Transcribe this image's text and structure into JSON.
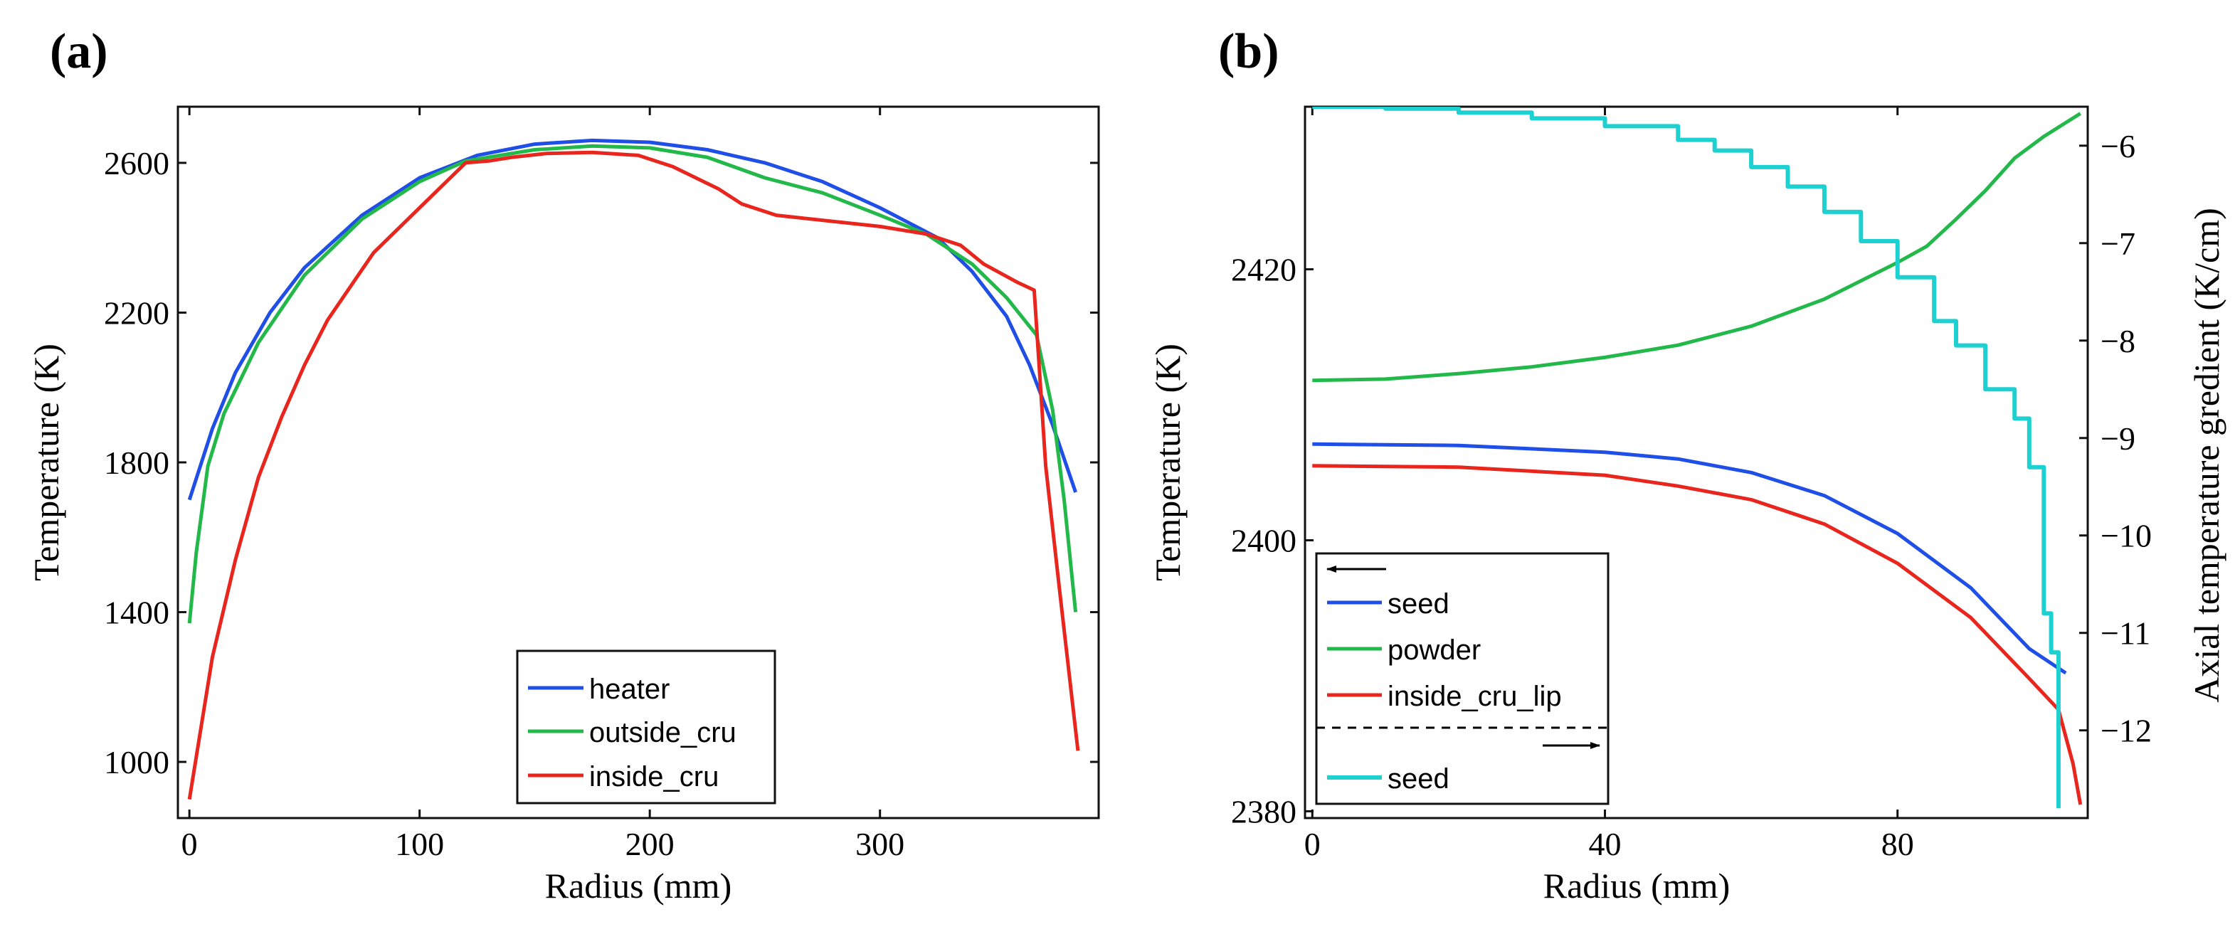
{
  "chart_data": [
    {
      "panel_label": "(a)",
      "type": "line",
      "xlabel": "Radius (mm)",
      "ylabel": "Temperature (K)",
      "xlim": [
        -5,
        395
      ],
      "ylim": [
        850,
        2750
      ],
      "xticks": [
        0,
        100,
        200,
        300
      ],
      "yticks": [
        1000,
        1400,
        1800,
        2200,
        2600
      ],
      "legend_position": "bottom-center",
      "series": [
        {
          "name": "heater",
          "color": "#1f4fe6",
          "axis": "left",
          "points": [
            [
              0,
              1700
            ],
            [
              10,
              1890
            ],
            [
              20,
              2040
            ],
            [
              35,
              2200
            ],
            [
              50,
              2320
            ],
            [
              75,
              2460
            ],
            [
              100,
              2560
            ],
            [
              125,
              2620
            ],
            [
              150,
              2650
            ],
            [
              175,
              2660
            ],
            [
              200,
              2655
            ],
            [
              225,
              2635
            ],
            [
              250,
              2600
            ],
            [
              275,
              2550
            ],
            [
              300,
              2480
            ],
            [
              325,
              2400
            ],
            [
              340,
              2310
            ],
            [
              355,
              2190
            ],
            [
              365,
              2060
            ],
            [
              375,
              1900
            ],
            [
              385,
              1720
            ]
          ]
        },
        {
          "name": "outside_cru",
          "color": "#22b84a",
          "axis": "left",
          "points": [
            [
              0,
              1370
            ],
            [
              3,
              1560
            ],
            [
              8,
              1790
            ],
            [
              15,
              1930
            ],
            [
              30,
              2120
            ],
            [
              50,
              2300
            ],
            [
              75,
              2450
            ],
            [
              100,
              2550
            ],
            [
              120,
              2605
            ],
            [
              150,
              2635
            ],
            [
              175,
              2645
            ],
            [
              200,
              2640
            ],
            [
              225,
              2615
            ],
            [
              250,
              2560
            ],
            [
              275,
              2520
            ],
            [
              300,
              2460
            ],
            [
              320,
              2410
            ],
            [
              340,
              2330
            ],
            [
              355,
              2240
            ],
            [
              368,
              2140
            ],
            [
              375,
              1940
            ],
            [
              380,
              1700
            ],
            [
              385,
              1400
            ]
          ]
        },
        {
          "name": "inside_cru",
          "color": "#e8261e",
          "axis": "left",
          "points": [
            [
              0,
              900
            ],
            [
              10,
              1280
            ],
            [
              20,
              1540
            ],
            [
              30,
              1760
            ],
            [
              40,
              1920
            ],
            [
              50,
              2060
            ],
            [
              60,
              2180
            ],
            [
              80,
              2360
            ],
            [
              100,
              2480
            ],
            [
              120,
              2600
            ],
            [
              130,
              2605
            ],
            [
              140,
              2615
            ],
            [
              155,
              2625
            ],
            [
              175,
              2628
            ],
            [
              195,
              2620
            ],
            [
              210,
              2590
            ],
            [
              220,
              2560
            ],
            [
              230,
              2530
            ],
            [
              240,
              2490
            ],
            [
              255,
              2460
            ],
            [
              300,
              2430
            ],
            [
              320,
              2410
            ],
            [
              335,
              2380
            ],
            [
              345,
              2330
            ],
            [
              360,
              2280
            ],
            [
              367,
              2260
            ],
            [
              372,
              1790
            ],
            [
              378,
              1460
            ],
            [
              386,
              1030
            ]
          ]
        }
      ]
    },
    {
      "panel_label": "(b)",
      "type": "line",
      "xlabel": "Radius (mm)",
      "ylabel": "Temperature (K)",
      "ylabel_right": "Axial temperature gredient (K/cm)",
      "xlim": [
        -1,
        106
      ],
      "ylim": [
        2379.5,
        2432
      ],
      "ylim_right": [
        -12.9,
        -5.6
      ],
      "xticks": [
        0,
        40,
        80
      ],
      "yticks": [
        2380,
        2400,
        2420
      ],
      "yticks_right": [
        -6,
        -7,
        -8,
        -9,
        -10,
        -11,
        -12
      ],
      "legend_position": "bottom-left",
      "legend_left_arrow": "←",
      "legend_right_arrow": "→",
      "series": [
        {
          "name": "seed",
          "color": "#1f4fe6",
          "axis": "left",
          "points": [
            [
              0,
              2407.1
            ],
            [
              20,
              2407.0
            ],
            [
              40,
              2406.5
            ],
            [
              50,
              2406.0
            ],
            [
              60,
              2405.0
            ],
            [
              70,
              2403.3
            ],
            [
              80,
              2400.5
            ],
            [
              90,
              2396.5
            ],
            [
              98,
              2392.0
            ],
            [
              103,
              2390.2
            ]
          ]
        },
        {
          "name": "powder",
          "color": "#22b84a",
          "axis": "left",
          "points": [
            [
              0,
              2411.8
            ],
            [
              10,
              2411.9
            ],
            [
              20,
              2412.3
            ],
            [
              30,
              2412.8
            ],
            [
              40,
              2413.5
            ],
            [
              50,
              2414.4
            ],
            [
              60,
              2415.8
            ],
            [
              70,
              2417.8
            ],
            [
              80,
              2420.5
            ],
            [
              84,
              2421.7
            ],
            [
              88,
              2423.7
            ],
            [
              92,
              2425.8
            ],
            [
              96,
              2428.2
            ],
            [
              100,
              2429.8
            ],
            [
              105,
              2431.5
            ]
          ]
        },
        {
          "name": "inside_cru_lip",
          "color": "#e8261e",
          "axis": "left",
          "points": [
            [
              0,
              2405.5
            ],
            [
              20,
              2405.4
            ],
            [
              40,
              2404.8
            ],
            [
              50,
              2404.0
            ],
            [
              60,
              2403.0
            ],
            [
              70,
              2401.2
            ],
            [
              80,
              2398.3
            ],
            [
              90,
              2394.3
            ],
            [
              98,
              2389.8
            ],
            [
              102,
              2387.5
            ],
            [
              104,
              2383.5
            ],
            [
              105,
              2380.5
            ]
          ]
        },
        {
          "name": "seed",
          "color": "#1fd0d0",
          "axis": "right",
          "style": "staircase",
          "points": [
            [
              0,
              -5.6
            ],
            [
              10,
              -5.62
            ],
            [
              20,
              -5.66
            ],
            [
              30,
              -5.72
            ],
            [
              40,
              -5.8
            ],
            [
              50,
              -5.94
            ],
            [
              55,
              -6.05
            ],
            [
              60,
              -6.22
            ],
            [
              65,
              -6.42
            ],
            [
              70,
              -6.68
            ],
            [
              75,
              -6.98
            ],
            [
              80,
              -7.35
            ],
            [
              85,
              -7.8
            ],
            [
              88,
              -8.05
            ],
            [
              92,
              -8.5
            ],
            [
              96,
              -8.8
            ],
            [
              98,
              -9.3
            ],
            [
              100,
              -10.8
            ],
            [
              101,
              -11.2
            ],
            [
              102,
              -12.8
            ]
          ]
        }
      ]
    }
  ]
}
